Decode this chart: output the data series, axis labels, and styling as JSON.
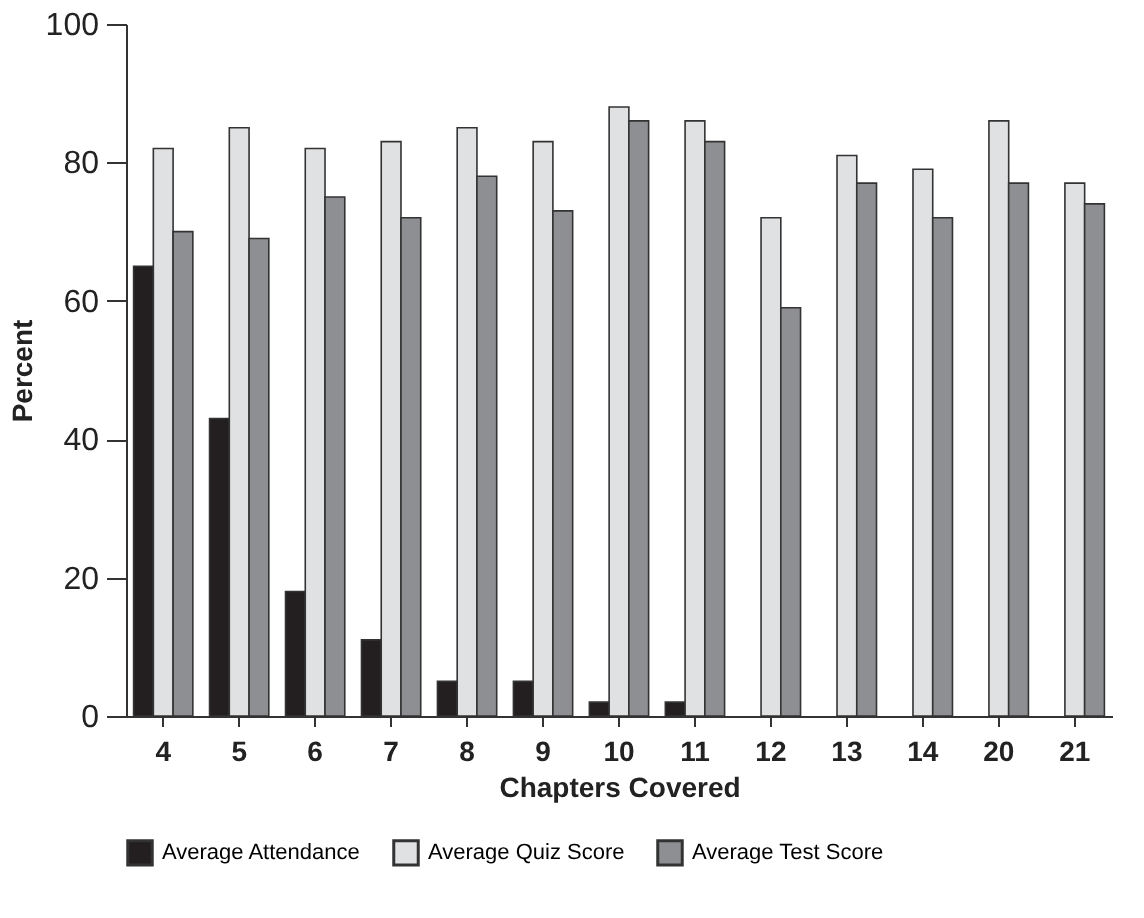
{
  "chart_data": {
    "type": "bar",
    "xlabel": "Chapters Covered",
    "ylabel": "Percent",
    "categories": [
      "4",
      "5",
      "6",
      "7",
      "8",
      "9",
      "10",
      "11",
      "12",
      "13",
      "14",
      "20",
      "21"
    ],
    "series": [
      {
        "name": "Average Attendance",
        "color": "#231f20",
        "values": [
          65,
          43,
          18,
          11,
          5,
          5,
          2,
          2,
          0,
          0,
          0,
          0,
          0
        ]
      },
      {
        "name": "Average Quiz Score",
        "color": "#e0e1e3",
        "values": [
          82,
          85,
          82,
          83,
          85,
          83,
          88,
          86,
          72,
          81,
          79,
          86,
          77
        ]
      },
      {
        "name": "Average Test Score",
        "color": "#8e8f93",
        "values": [
          70,
          69,
          75,
          72,
          78,
          73,
          86,
          83,
          59,
          77,
          72,
          77,
          74
        ]
      }
    ],
    "ylim": [
      0,
      100
    ],
    "yticks": [
      0,
      20,
      40,
      60,
      80,
      100
    ],
    "grid": false,
    "legend": "bottom"
  }
}
